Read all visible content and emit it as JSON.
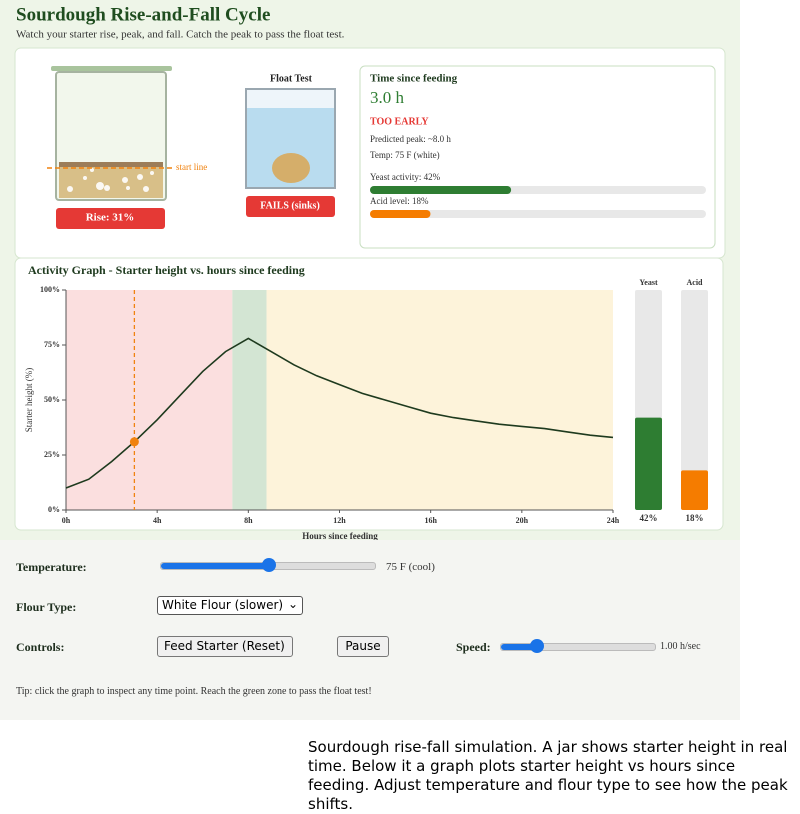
{
  "header": {
    "title": "Sourdough Rise-and-Fall Cycle",
    "subtitle": "Watch your starter rise, peak, and fall. Catch the peak to pass the float test."
  },
  "jar": {
    "start_line_label": "start line",
    "rise_label": "Rise: 31%"
  },
  "float_test": {
    "title": "Float Test",
    "result": "FAILS (sinks)"
  },
  "status": {
    "heading": "Time since feeding",
    "time": "3.0 h",
    "verdict": "TOO EARLY",
    "predicted_peak": "Predicted peak: ~8.0 h",
    "temp": "Temp: 75 F (white)",
    "yeast_label": "Yeast activity: 42%",
    "yeast_value": 42,
    "acid_label": "Acid level: 18%",
    "acid_value": 18
  },
  "chart_data": {
    "type": "line",
    "title": "Activity Graph - Starter height vs. hours since feeding",
    "x_label": "Hours since feeding",
    "y_label": "Starter height (%)",
    "x": [
      0,
      1,
      2,
      3,
      4,
      5,
      6,
      7,
      8,
      9,
      10,
      11,
      12,
      13,
      14,
      15,
      16,
      17,
      18,
      19,
      20,
      21,
      22,
      23,
      24
    ],
    "series": [
      {
        "color": "#1e3a1e",
        "values": [
          10,
          14,
          22,
          31,
          41,
          52,
          63,
          72,
          78,
          72,
          66,
          61,
          57,
          53,
          50,
          47,
          44,
          42,
          40.5,
          39,
          38,
          37,
          35.5,
          34,
          33
        ]
      }
    ],
    "xlim": [
      0,
      24
    ],
    "ylim": [
      0,
      100
    ],
    "xticks": [
      {
        "value": 0,
        "label": "0h"
      },
      {
        "value": 4,
        "label": "4h"
      },
      {
        "value": 8,
        "label": "8h"
      },
      {
        "value": 12,
        "label": "12h"
      },
      {
        "value": 16,
        "label": "16h"
      },
      {
        "value": 20,
        "label": "20h"
      },
      {
        "value": 24,
        "label": "24h"
      }
    ],
    "yticks": [
      {
        "value": 0,
        "label": "0%"
      },
      {
        "value": 25,
        "label": "25%"
      },
      {
        "value": 50,
        "label": "50%"
      },
      {
        "value": 75,
        "label": "75%"
      },
      {
        "value": 100,
        "label": "100%"
      }
    ],
    "zones": [
      {
        "start": 0,
        "end": 7.3,
        "color": "#fbdfdf"
      },
      {
        "start": 7.3,
        "end": 8.8,
        "color": "#d3e5d3"
      },
      {
        "start": 8.8,
        "end": 24,
        "color": "#fdf3da"
      }
    ],
    "current": {
      "x": 3,
      "y": 31,
      "color": "#f0820f"
    },
    "meters": [
      {
        "name": "Yeast",
        "value": 42,
        "value_label": "42%",
        "color": "#2e7d32"
      },
      {
        "name": "Acid",
        "value": 18,
        "value_label": "18%",
        "color": "#f57c00"
      }
    ]
  },
  "controls": {
    "temperature_label": "Temperature:",
    "temperature_value": "75 F (cool)",
    "flour_label": "Flour Type:",
    "flour_option": "White Flour (slower)",
    "controls_label": "Controls:",
    "feed_button": "Feed Starter (Reset)",
    "pause_button": "Pause",
    "speed_label": "Speed:",
    "speed_value": "1.00 h/sec",
    "tip": "Tip: click the graph to inspect any time point. Reach the green zone to pass the float test!"
  },
  "caption": "Sourdough rise-fall simulation. A jar shows starter height in real time. Below it a graph plots starter height vs hours since feeding. Adjust temperature and flour type to see how the peak shifts."
}
